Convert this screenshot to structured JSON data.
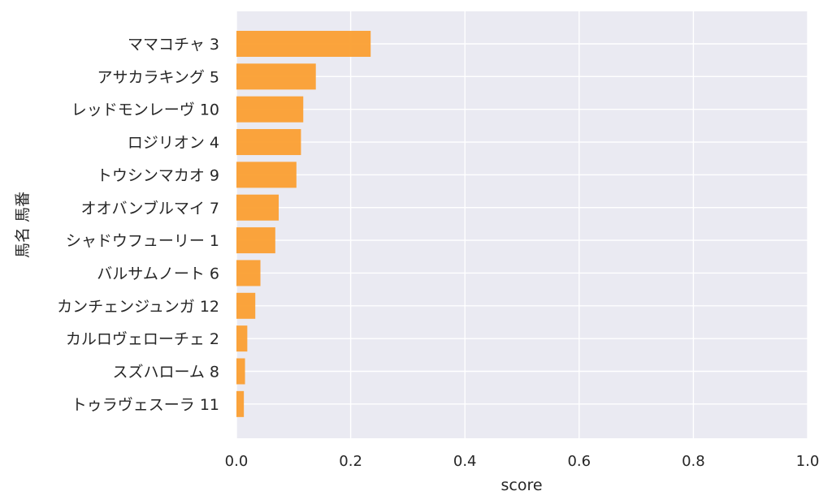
{
  "chart_data": {
    "type": "bar",
    "orientation": "horizontal",
    "categories": [
      "ママコチャ 3",
      "アサカラキング 5",
      "レッドモンレーヴ 10",
      "ロジリオン 4",
      "トウシンマカオ 9",
      "オオバンブルマイ 7",
      "シャドウフューリー 1",
      "バルサムノート 6",
      "カンチェンジュンガ 12",
      "カルロヴェローチェ 2",
      "スズハローム 8",
      "トゥラヴェスーラ 11"
    ],
    "values": [
      0.235,
      0.139,
      0.117,
      0.113,
      0.105,
      0.074,
      0.068,
      0.042,
      0.033,
      0.019,
      0.015,
      0.013
    ],
    "xlabel": "score",
    "ylabel": "馬名 馬番",
    "xlim": [
      0,
      1.0
    ],
    "xticks": [
      "0.0",
      "0.2",
      "0.4",
      "0.6",
      "0.8",
      "1.0"
    ],
    "grid": true,
    "colors": {
      "bar": "#fb9f31",
      "plot_background": "#eaeaf2",
      "grid": "#ffffff",
      "text": "#262626"
    }
  }
}
